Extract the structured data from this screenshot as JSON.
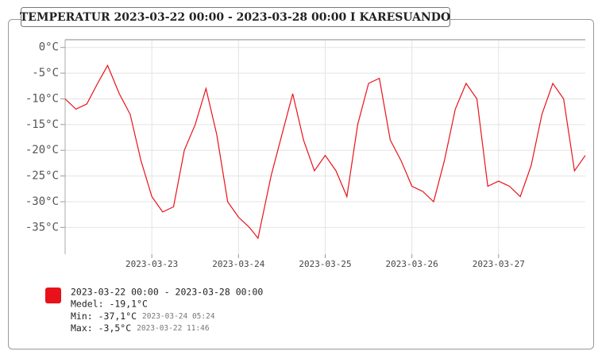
{
  "chart_data": {
    "type": "line",
    "title": "TEMPERATUR 2023-03-22 00:00 - 2023-03-28 00:00 I KARESUANDO",
    "x": [
      "2023-03-22 00:00",
      "2023-03-22 03:00",
      "2023-03-22 06:00",
      "2023-03-22 09:00",
      "2023-03-22 11:46",
      "2023-03-22 15:00",
      "2023-03-22 18:00",
      "2023-03-22 21:00",
      "2023-03-23 00:00",
      "2023-03-23 03:00",
      "2023-03-23 06:00",
      "2023-03-23 09:00",
      "2023-03-23 12:00",
      "2023-03-23 15:00",
      "2023-03-23 18:00",
      "2023-03-23 21:00",
      "2023-03-24 00:00",
      "2023-03-24 03:00",
      "2023-03-24 05:24",
      "2023-03-24 09:00",
      "2023-03-24 12:00",
      "2023-03-24 15:00",
      "2023-03-24 18:00",
      "2023-03-24 21:00",
      "2023-03-25 00:00",
      "2023-03-25 03:00",
      "2023-03-25 06:00",
      "2023-03-25 09:00",
      "2023-03-25 12:00",
      "2023-03-25 15:00",
      "2023-03-25 18:00",
      "2023-03-25 21:00",
      "2023-03-26 00:00",
      "2023-03-26 03:00",
      "2023-03-26 06:00",
      "2023-03-26 09:00",
      "2023-03-26 12:00",
      "2023-03-26 15:00",
      "2023-03-26 18:00",
      "2023-03-26 21:00",
      "2023-03-27 00:00",
      "2023-03-27 03:00",
      "2023-03-27 06:00",
      "2023-03-27 09:00",
      "2023-03-27 12:00",
      "2023-03-27 15:00",
      "2023-03-27 18:00",
      "2023-03-27 21:00",
      "2023-03-28 00:00"
    ],
    "series": [
      {
        "name": "2023-03-22 00:00 - 2023-03-28 00:00",
        "color": "#e8121a",
        "values": [
          -10,
          -12,
          -11,
          -7,
          -3.5,
          -9,
          -13,
          -22,
          -29,
          -32,
          -31,
          -20,
          -15,
          -8,
          -17,
          -30,
          -33,
          -35,
          -37.1,
          -25,
          -17,
          -9,
          -18,
          -24,
          -21,
          -24,
          -29,
          -15,
          -7,
          -6,
          -18,
          -22,
          -27,
          -28,
          -30,
          -22,
          -12,
          -7,
          -10,
          -27,
          -26,
          -27,
          -29,
          -23,
          -13,
          -7,
          -10,
          -24,
          -21
        ]
      }
    ],
    "xlim": [
      "2023-03-22 00:00",
      "2023-03-28 00:00"
    ],
    "xticks": [
      "2023-03-23",
      "2023-03-24",
      "2023-03-25",
      "2023-03-26",
      "2023-03-27"
    ],
    "ylim": [
      -40.2,
      1.5
    ],
    "yticks": [
      {
        "value": 0,
        "label": "0°C"
      },
      {
        "value": -5,
        "label": "-5°C"
      },
      {
        "value": -10,
        "label": "-10°C"
      },
      {
        "value": -15,
        "label": "-15°C"
      },
      {
        "value": -20,
        "label": "-20°C"
      },
      {
        "value": -25,
        "label": "-25°C"
      },
      {
        "value": -30,
        "label": "-30°C"
      },
      {
        "value": -35,
        "label": "-35°C"
      }
    ],
    "grid": true,
    "stats": {
      "mean": "Medel: -19,1°C",
      "min": "Min: -37,1°C",
      "min_time": "2023-03-24 05:24",
      "max": "Max: -3,5°C",
      "max_time": "2023-03-22 11:46"
    }
  }
}
